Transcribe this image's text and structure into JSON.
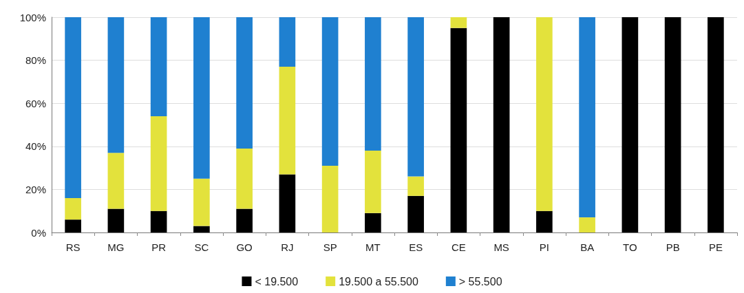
{
  "chart_data": {
    "type": "bar",
    "stacked": true,
    "categories": [
      "RS",
      "MG",
      "PR",
      "SC",
      "GO",
      "RJ",
      "SP",
      "MT",
      "ES",
      "CE",
      "MS",
      "PI",
      "BA",
      "TO",
      "PB",
      "PE"
    ],
    "series": [
      {
        "name": "< 19.500",
        "color": "#000000",
        "values": [
          6,
          11,
          10,
          3,
          11,
          27,
          0,
          9,
          17,
          95,
          100,
          10,
          0,
          100,
          100,
          100
        ]
      },
      {
        "name": "19.500 a 55.500",
        "color": "#e3e23c",
        "values": [
          10,
          26,
          44,
          22,
          28,
          50,
          31,
          29,
          9,
          5,
          0,
          90,
          7,
          0,
          0,
          0
        ]
      },
      {
        "name": "> 55.500",
        "color": "#1f80d0",
        "values": [
          84,
          63,
          46,
          75,
          61,
          23,
          69,
          62,
          74,
          0,
          0,
          0,
          93,
          0,
          0,
          0
        ]
      }
    ],
    "ylim": [
      0,
      100
    ],
    "yticks": [
      {
        "value": 0,
        "label": "0%"
      },
      {
        "value": 20,
        "label": "20%"
      },
      {
        "value": 40,
        "label": "40%"
      },
      {
        "value": 60,
        "label": "60%"
      },
      {
        "value": 80,
        "label": "80%"
      },
      {
        "value": 100,
        "label": "100%"
      }
    ],
    "grid": "y",
    "legend": "bottom"
  }
}
